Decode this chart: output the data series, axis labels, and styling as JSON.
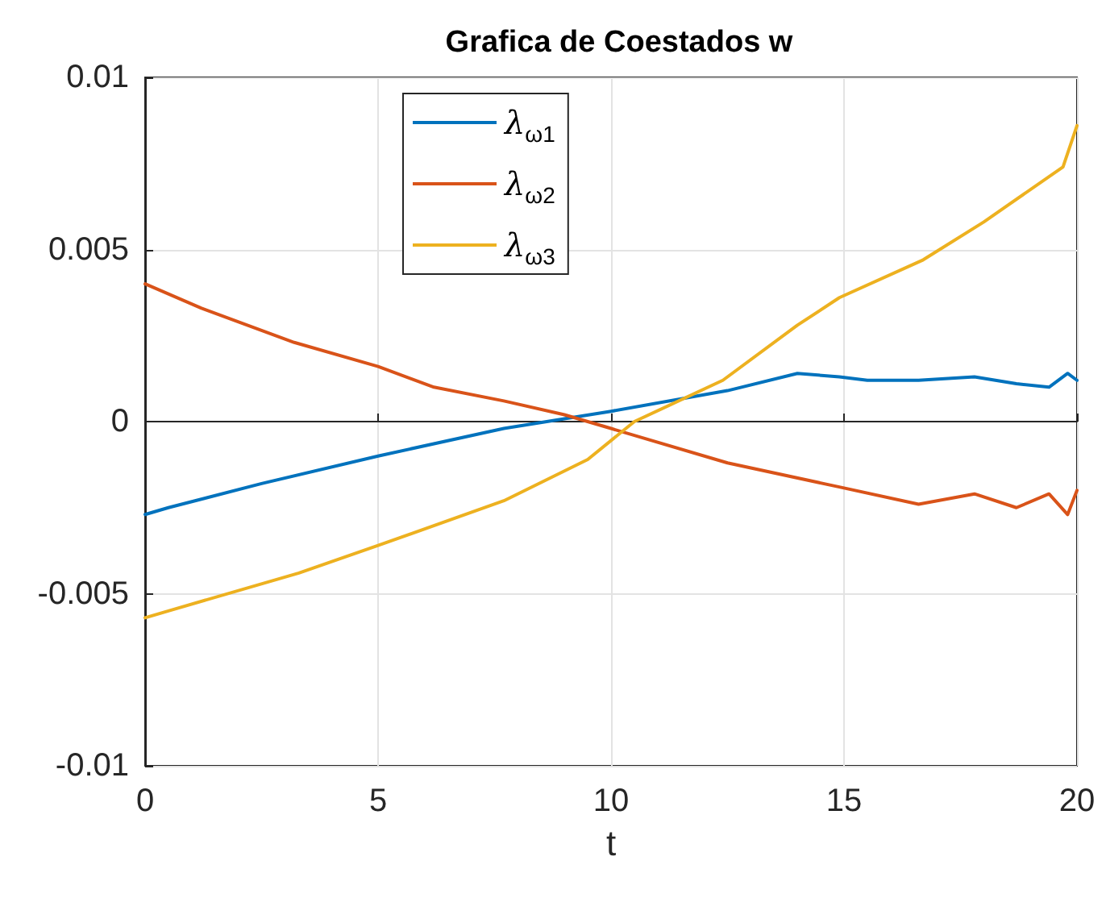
{
  "chart_data": {
    "type": "line",
    "title": "Grafica de Coestados w",
    "xlabel": "t",
    "xlim": [
      0,
      20
    ],
    "xticks": [
      0,
      5,
      10,
      15,
      20
    ],
    "ylim": [
      -0.01,
      0.01
    ],
    "yticks": [
      -0.01,
      -0.005,
      0,
      0.005,
      0.01
    ],
    "grid": true,
    "legend": "top left",
    "line_style": "solid",
    "marker": "none",
    "series": [
      {
        "name": "λ$_{ω1}$",
        "color": "#0072bd",
        "x": [
          0,
          0.5,
          2.5,
          5,
          7.7,
          10,
          12.5,
          14,
          14.9,
          15.5,
          16.6,
          17.8,
          18.7,
          19.4,
          19.8,
          20
        ],
        "values": [
          -0.0027,
          -0.0025,
          -0.0018,
          -0.001,
          -0.0002,
          0.0003,
          0.0009,
          0.0014,
          0.0013,
          0.0012,
          0.0012,
          0.0013,
          0.0011,
          0.001,
          0.0014,
          0.0012
        ]
      },
      {
        "name": "λ$_{ω2}$",
        "color": "#d95319",
        "x": [
          0,
          1.2,
          3.2,
          5,
          6.2,
          7.7,
          9,
          10,
          12.5,
          14.9,
          16.6,
          17.8,
          18.7,
          19.4,
          19.8,
          20
        ],
        "values": [
          0.004,
          0.0033,
          0.0023,
          0.0016,
          0.001,
          0.0006,
          0.0002,
          -0.0002,
          -0.0012,
          -0.0019,
          -0.0024,
          -0.0021,
          -0.0025,
          -0.0021,
          -0.0027,
          -0.002
        ]
      },
      {
        "name": "λ$_{ω3}$",
        "color": "#edb120",
        "x": [
          0,
          0.5,
          3.3,
          5,
          7.7,
          9.5,
          10.5,
          12.4,
          14,
          14.9,
          16.7,
          18,
          19.7,
          20
        ],
        "values": [
          -0.0057,
          -0.0055,
          -0.0044,
          -0.0036,
          -0.0023,
          -0.0011,
          0,
          0.0012,
          0.0028,
          0.0036,
          0.0047,
          0.0058,
          0.0074,
          0.0086
        ]
      }
    ]
  }
}
